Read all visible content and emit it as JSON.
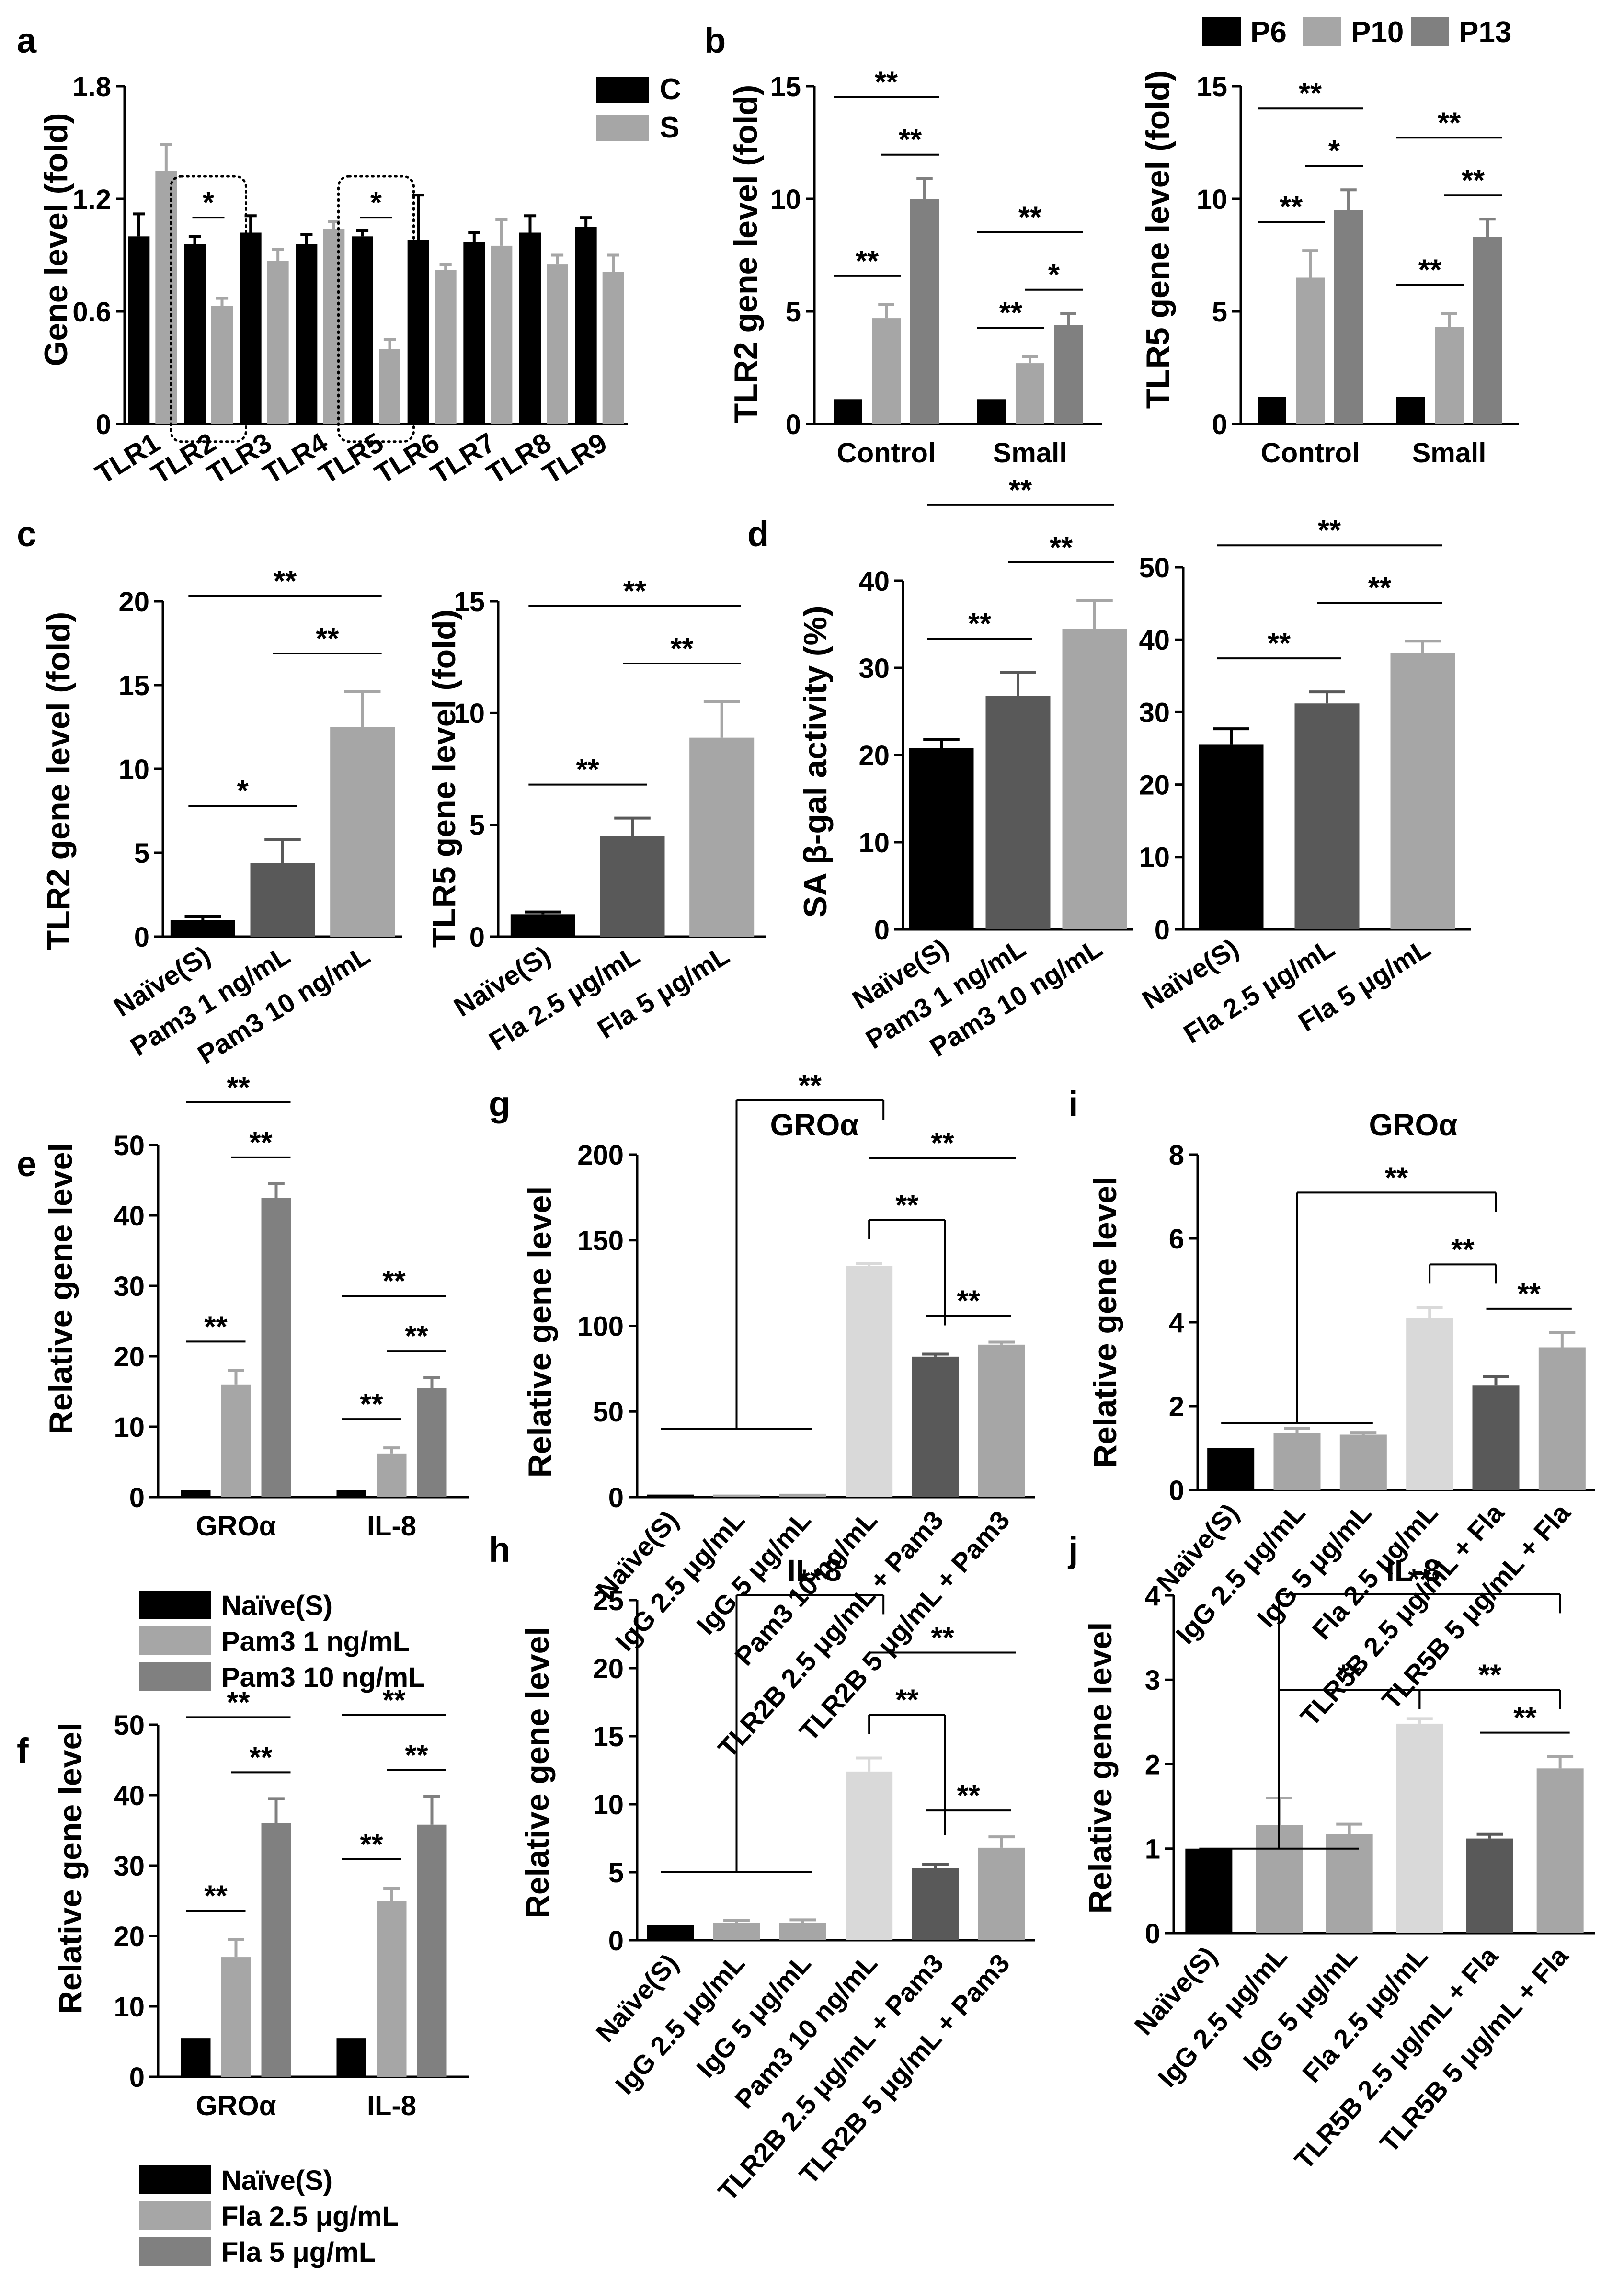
{
  "figure": {
    "panel_letters": [
      "a",
      "b",
      "c",
      "d",
      "e",
      "f",
      "g",
      "h",
      "i",
      "j"
    ]
  },
  "colors": {
    "black": "#000000",
    "light_gray": "#a6a6a6",
    "mid_gray": "#808080",
    "dark_gray": "#595959",
    "pale_gray": "#d9d9d9"
  },
  "legends": {
    "a": [
      {
        "label": "C",
        "color": "#000000"
      },
      {
        "label": "S",
        "color": "#a6a6a6"
      }
    ],
    "b": [
      {
        "label": "P6",
        "color": "#000000"
      },
      {
        "label": "P10",
        "color": "#a6a6a6"
      },
      {
        "label": "P13",
        "color": "#808080"
      }
    ],
    "e": [
      {
        "label": "Naïve(S)",
        "color": "#000000"
      },
      {
        "label": "Pam3 1 ng/mL",
        "color": "#a6a6a6"
      },
      {
        "label": "Pam3 10 ng/mL",
        "color": "#808080"
      }
    ],
    "f": [
      {
        "label": "Naïve(S)",
        "color": "#000000"
      },
      {
        "label": "Fla 2.5 μg/mL",
        "color": "#a6a6a6"
      },
      {
        "label": "Fla 5 μg/mL",
        "color": "#808080"
      }
    ]
  },
  "chart_data": [
    {
      "id": "a",
      "type": "bar",
      "ylabel": "Gene level (fold)",
      "ylim": [
        0,
        1.8
      ],
      "yticks": [
        "0",
        "0.6",
        "1.2",
        "1.8"
      ],
      "categories": [
        "TLR1",
        "TLR2",
        "TLR3",
        "TLR4",
        "TLR5",
        "TLR6",
        "TLR7",
        "TLR8",
        "TLR9"
      ],
      "series": [
        {
          "name": "C",
          "values": [
            1.0,
            0.96,
            1.02,
            0.96,
            1.0,
            0.98,
            0.97,
            1.02,
            1.05
          ],
          "errors": [
            0.12,
            0.04,
            0.09,
            0.05,
            0.03,
            0.24,
            0.05,
            0.09,
            0.05
          ]
        },
        {
          "name": "S",
          "values": [
            1.35,
            0.63,
            0.87,
            1.04,
            0.4,
            0.82,
            0.95,
            0.85,
            0.81
          ],
          "errors": [
            0.14,
            0.04,
            0.06,
            0.04,
            0.05,
            0.03,
            0.14,
            0.05,
            0.09
          ]
        }
      ],
      "significance": [
        {
          "category": "TLR2",
          "label": "*"
        },
        {
          "category": "TLR5",
          "label": "*"
        }
      ]
    },
    {
      "id": "b_tlr2",
      "type": "bar",
      "ylabel": "TLR2 gene level (fold)",
      "ylim": [
        0,
        15
      ],
      "yticks": [
        "0",
        "5",
        "10",
        "15"
      ],
      "categories": [
        "Control",
        "Small"
      ],
      "series": [
        {
          "name": "P6",
          "values": [
            1.1,
            1.1
          ],
          "errors": [
            0,
            0
          ]
        },
        {
          "name": "P10",
          "values": [
            4.7,
            2.7
          ],
          "errors": [
            0.6,
            0.3
          ]
        },
        {
          "name": "P13",
          "values": [
            10.0,
            4.4
          ],
          "errors": [
            0.9,
            0.5
          ]
        }
      ],
      "significance_labels": [
        "**",
        "**",
        "**",
        "**",
        "*",
        "**"
      ]
    },
    {
      "id": "b_tlr5",
      "type": "bar",
      "ylabel": "TLR5 gene level (fold)",
      "ylim": [
        0,
        15
      ],
      "yticks": [
        "0",
        "5",
        "10",
        "15"
      ],
      "categories": [
        "Control",
        "Small"
      ],
      "series": [
        {
          "name": "P6",
          "values": [
            1.2,
            1.2
          ],
          "errors": [
            0,
            0
          ]
        },
        {
          "name": "P10",
          "values": [
            6.5,
            4.3
          ],
          "errors": [
            1.2,
            0.6
          ]
        },
        {
          "name": "P13",
          "values": [
            9.5,
            8.3
          ],
          "errors": [
            0.9,
            0.8
          ]
        }
      ],
      "significance_labels": [
        "**",
        "*",
        "**",
        "**",
        "**",
        "**"
      ]
    },
    {
      "id": "c_tlr2",
      "type": "bar",
      "ylabel": "TLR2 gene level (fold)",
      "ylim": [
        0,
        20
      ],
      "yticks": [
        "0",
        "5",
        "10",
        "15",
        "20"
      ],
      "categories": [
        "Naïve(S)",
        "Pam3 1 ng/mL",
        "Pam3 10 ng/mL"
      ],
      "values": [
        1.0,
        4.4,
        12.5
      ],
      "errors": [
        0.2,
        1.4,
        2.1
      ],
      "significance_labels": [
        "**",
        "**",
        "*"
      ]
    },
    {
      "id": "c_tlr5",
      "type": "bar",
      "ylabel": "TLR5 gene level (fold)",
      "ylim": [
        0,
        15
      ],
      "yticks": [
        "0",
        "5",
        "10",
        "15"
      ],
      "categories": [
        "Naïve(S)",
        "Fla 2.5 μg/mL",
        "Fla 5 μg/mL"
      ],
      "values": [
        1.0,
        4.5,
        8.9
      ],
      "errors": [
        0.1,
        0.8,
        1.6
      ],
      "significance_labels": [
        "**",
        "**",
        "**"
      ]
    },
    {
      "id": "d_pam",
      "type": "bar",
      "ylabel": "SA β-gal  activity (%)",
      "ylim": [
        0,
        40
      ],
      "yticks": [
        "0",
        "10",
        "20",
        "30",
        "40"
      ],
      "categories": [
        "Naïve(S)",
        "Pam3 1 ng/mL",
        "Pam3 10 ng/mL"
      ],
      "values": [
        20.8,
        26.8,
        34.5
      ],
      "errors": [
        1.0,
        2.7,
        3.2
      ],
      "significance_labels": [
        "**",
        "**",
        "**"
      ]
    },
    {
      "id": "d_fla",
      "type": "bar",
      "ylabel": "",
      "ylim": [
        0,
        50
      ],
      "yticks": [
        "0",
        "10",
        "20",
        "30",
        "40",
        "50"
      ],
      "categories": [
        "Naïve(S)",
        "Fla 2.5 μg/mL",
        "Fla 5 μg/mL"
      ],
      "values": [
        25.5,
        31.2,
        38.2
      ],
      "errors": [
        2.2,
        1.6,
        1.6
      ],
      "significance_labels": [
        "**",
        "**",
        "**"
      ]
    },
    {
      "id": "e",
      "type": "bar",
      "ylabel": "Relative gene  level",
      "ylim": [
        0,
        50
      ],
      "yticks": [
        "0",
        "10",
        "20",
        "30",
        "40",
        "50"
      ],
      "categories": [
        "GROα",
        "IL-8"
      ],
      "series": [
        {
          "name": "Naïve(S)",
          "values": [
            1.0,
            1.0
          ],
          "errors": [
            0,
            0
          ]
        },
        {
          "name": "Pam3 1 ng/mL",
          "values": [
            16.0,
            6.2
          ],
          "errors": [
            2.0,
            0.8
          ]
        },
        {
          "name": "Pam3 10 ng/mL",
          "values": [
            42.5,
            15.5
          ],
          "errors": [
            2.0,
            1.5
          ]
        }
      ],
      "significance_labels": [
        "**",
        "**",
        "**",
        "**",
        "**",
        "**"
      ]
    },
    {
      "id": "f",
      "type": "bar",
      "ylabel": "Relative gene  level",
      "ylim": [
        0,
        50
      ],
      "yticks": [
        "0",
        "10",
        "20",
        "30",
        "40",
        "50"
      ],
      "categories": [
        "GROα",
        "IL-8"
      ],
      "series": [
        {
          "name": "Naïve(S)",
          "values": [
            5.5,
            5.5
          ],
          "errors": [
            0,
            0
          ]
        },
        {
          "name": "Fla 2.5 μg/mL",
          "values": [
            17.0,
            25.0
          ],
          "errors": [
            2.5,
            1.8
          ]
        },
        {
          "name": "Fla 5 μg/mL",
          "values": [
            36.0,
            35.8
          ],
          "errors": [
            3.5,
            4.0
          ]
        }
      ],
      "significance_labels": [
        "**",
        "**",
        "**",
        "**",
        "**",
        "**"
      ]
    },
    {
      "id": "g",
      "type": "bar",
      "title": "GROα",
      "ylabel": "Relative gene level",
      "ylim": [
        0,
        200
      ],
      "yticks": [
        "0",
        "50",
        "100",
        "150",
        "200"
      ],
      "categories": [
        "Naïve(S)",
        "IgG 2.5 μg/mL",
        "IgG 5 μg/mL",
        "Pam3 10 ng/mL",
        "TLR2B 2.5 μg/mL + Pam3",
        "TLR2B 5 μg/mL + Pam3"
      ],
      "values": [
        1.5,
        1.5,
        2.0,
        135,
        82,
        89
      ],
      "errors": [
        0,
        0,
        0,
        1.5,
        1.5,
        1.5
      ],
      "significance_labels": [
        "**",
        "**",
        "**",
        "**"
      ]
    },
    {
      "id": "h",
      "type": "bar",
      "title": "IL-8",
      "ylabel": "Relative gene  level",
      "ylim": [
        0,
        25
      ],
      "yticks": [
        "0",
        "5",
        "10",
        "15",
        "20",
        "25"
      ],
      "categories": [
        "Naïve(S)",
        "IgG 2.5 μg/mL",
        "IgG 5 μg/mL",
        "Pam3 10 ng/mL",
        "TLR2B 2.5 μg/mL + Pam3",
        "TLR2B 5 μg/mL + Pam3"
      ],
      "values": [
        1.1,
        1.3,
        1.3,
        12.4,
        5.3,
        6.8
      ],
      "errors": [
        0,
        0.15,
        0.2,
        1.0,
        0.3,
        0.8
      ],
      "significance_labels": [
        "**",
        "**",
        "**",
        "**"
      ]
    },
    {
      "id": "i",
      "type": "bar",
      "title": "GROα",
      "ylabel": "Relative gene  level",
      "ylim": [
        0,
        8
      ],
      "yticks": [
        "0",
        "2",
        "4",
        "6",
        "8"
      ],
      "categories": [
        "Naïve(S)",
        "IgG 2.5 μg/mL",
        "IgG 5 μg/mL",
        "Fla 2.5 μg/mL",
        "TLR5B 2.5 μg/mL + Fla",
        "TLR5B 5 μg/mL + Fla"
      ],
      "values": [
        1.0,
        1.35,
        1.32,
        4.1,
        2.5,
        3.4
      ],
      "errors": [
        0,
        0.12,
        0.05,
        0.25,
        0.2,
        0.35
      ],
      "significance_labels": [
        "**",
        "**",
        "**"
      ]
    },
    {
      "id": "j",
      "type": "bar",
      "title": "IL-8",
      "ylabel": "Relative gene  level",
      "ylim": [
        0,
        4
      ],
      "yticks": [
        "0",
        "1",
        "2",
        "3",
        "4"
      ],
      "categories": [
        "Naïve(S)",
        "IgG 2.5 μg/mL",
        "IgG 5 μg/mL",
        "Fla 2.5 μg/mL",
        "TLR5B 2.5 μg/mL + Fla",
        "TLR5B 5 μg/mL + Fla"
      ],
      "values": [
        1.0,
        1.28,
        1.17,
        2.48,
        1.12,
        1.95
      ],
      "errors": [
        0,
        0.32,
        0.12,
        0.06,
        0.05,
        0.14
      ],
      "significance_labels": [
        "**",
        "**",
        "**",
        "**"
      ]
    }
  ]
}
